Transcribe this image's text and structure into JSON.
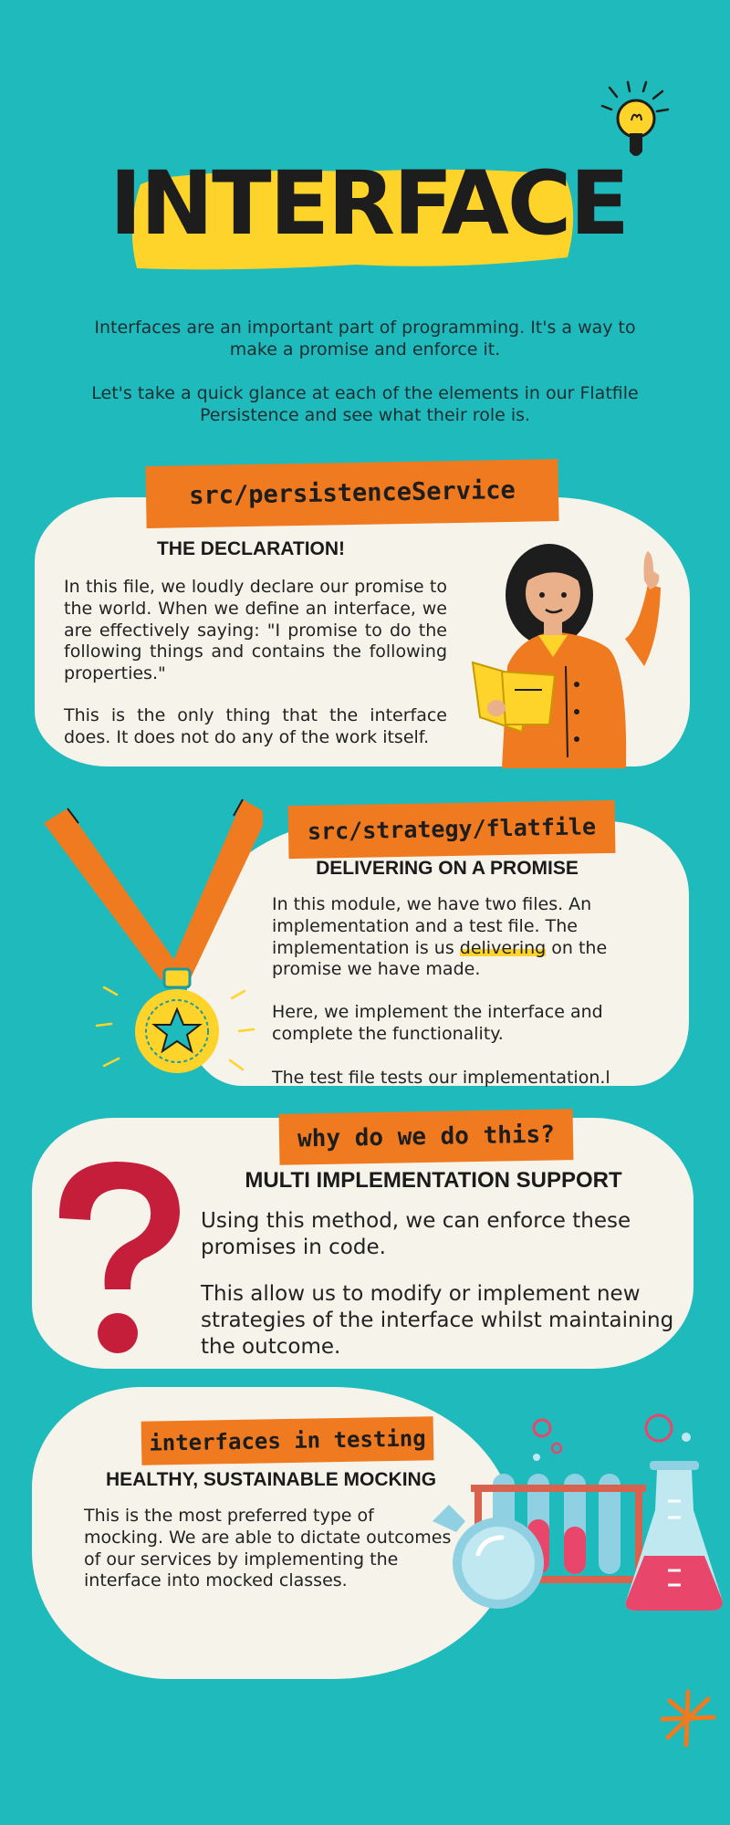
{
  "header": {
    "title": "INTERFACE",
    "intro_1": "Interfaces are an important part of programming.  It's a way to make a promise and enforce it.",
    "intro_2": "Let's take a quick glance at each of the elements in our Flatfile Persistence and see what their role is."
  },
  "section1": {
    "tag": "src/persistenceService",
    "heading": "THE DECLARATION!",
    "para_1": "In this file, we loudly declare our promise to the world. When we define an interface, we are effectively saying: \"I promise to do the following things and contains the following properties.\"",
    "para_2": "This is the only thing that the interface does. It does not do any of the work itself."
  },
  "section2": {
    "tag": "src/strategy/flatfile",
    "heading": "DELIVERING ON A PROMISE",
    "para_1_a": "In this module, we have two files. An implementation and a test file. The implementation is us ",
    "para_1_highlight": "delivering",
    "para_1_b": " on the promise we have made.",
    "para_2": "Here, we implement the interface and complete the functionality.",
    "para_3": "The test file tests our implementation.l"
  },
  "section3": {
    "tag": "why do we do this?",
    "heading": "MULTI IMPLEMENTATION SUPPORT",
    "para_1": "Using this method, we can enforce these promises in code.",
    "para_2": "This allow us to modify or implement new strategies of the interface whilst maintaining the outcome."
  },
  "section4": {
    "tag": "interfaces in testing",
    "heading": "HEALTHY, SUSTAINABLE MOCKING",
    "para_1": "This is the most preferred type of mocking.  We are able to dictate outcomes of our services by implementing the interface into mocked classes."
  },
  "colors": {
    "background": "#1fbabb",
    "card": "#f6f3ea",
    "tag_orange": "#f07a1f",
    "highlight_yellow": "#ffd42a",
    "question_red": "#c41e3a"
  },
  "icons": [
    "lightbulb-icon",
    "teacher-illustration",
    "medal-icon",
    "question-mark-icon",
    "lab-flasks-illustration",
    "asterisk-icon"
  ]
}
